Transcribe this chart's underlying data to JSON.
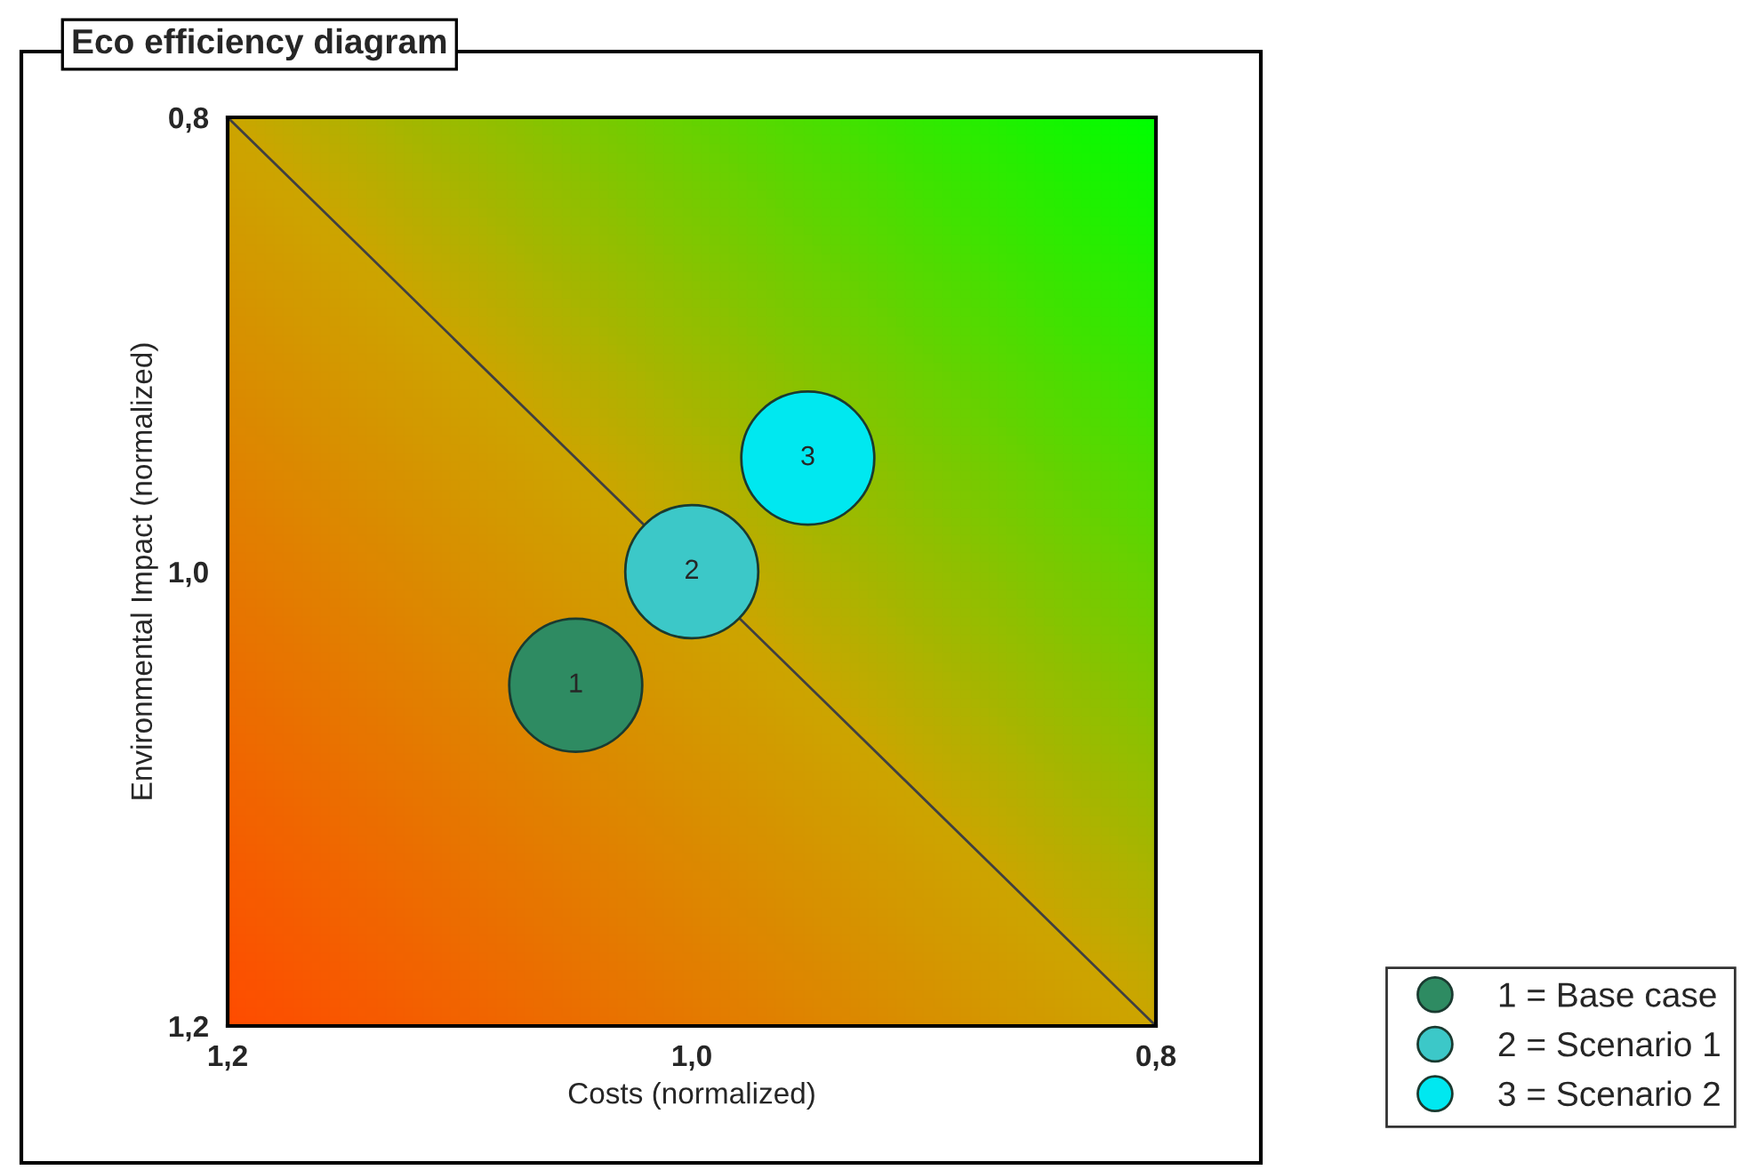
{
  "chart_data": {
    "type": "bubble",
    "title": "Eco efficiency diagram",
    "xlabel": "Costs (normalized)",
    "ylabel": "Environmental Impact (normalized)",
    "xlim": [
      1.2,
      0.8
    ],
    "ylim": [
      1.2,
      0.8
    ],
    "xticks": [
      {
        "value": 1.2,
        "label": "1,2"
      },
      {
        "value": 1.0,
        "label": "1,0"
      },
      {
        "value": 0.8,
        "label": "0,8"
      }
    ],
    "yticks": [
      {
        "value": 1.2,
        "label": "1,2"
      },
      {
        "value": 1.0,
        "label": "1,0"
      },
      {
        "value": 0.8,
        "label": "0,8"
      }
    ],
    "grid": false,
    "legend": "bottom right",
    "series": [
      {
        "name": "1 = Base case",
        "color": "#2e8b62",
        "x": [
          1.05
        ],
        "values": [
          1.05
        ],
        "sizes": [
          1
        ]
      },
      {
        "name": "2 = Scenario 1",
        "color": "#3cc8c8",
        "x": [
          1.0
        ],
        "values": [
          1.0
        ],
        "sizes": [
          1
        ]
      },
      {
        "name": "3 = Scenario 2",
        "color": "#00e8f0",
        "x": [
          0.95
        ],
        "values": [
          0.95
        ],
        "sizes": [
          1
        ]
      },
      {
        "type": "line",
        "color": "#404040",
        "x": [
          1.2,
          0.8
        ],
        "values": [
          0.8,
          1.2
        ]
      }
    ],
    "annotations": [
      {
        "text": "1",
        "x": 1.05,
        "y": 1.05
      },
      {
        "text": "2",
        "x": 1.0,
        "y": 1.0
      },
      {
        "text": "3",
        "x": 0.95,
        "y": 0.95
      }
    ]
  }
}
